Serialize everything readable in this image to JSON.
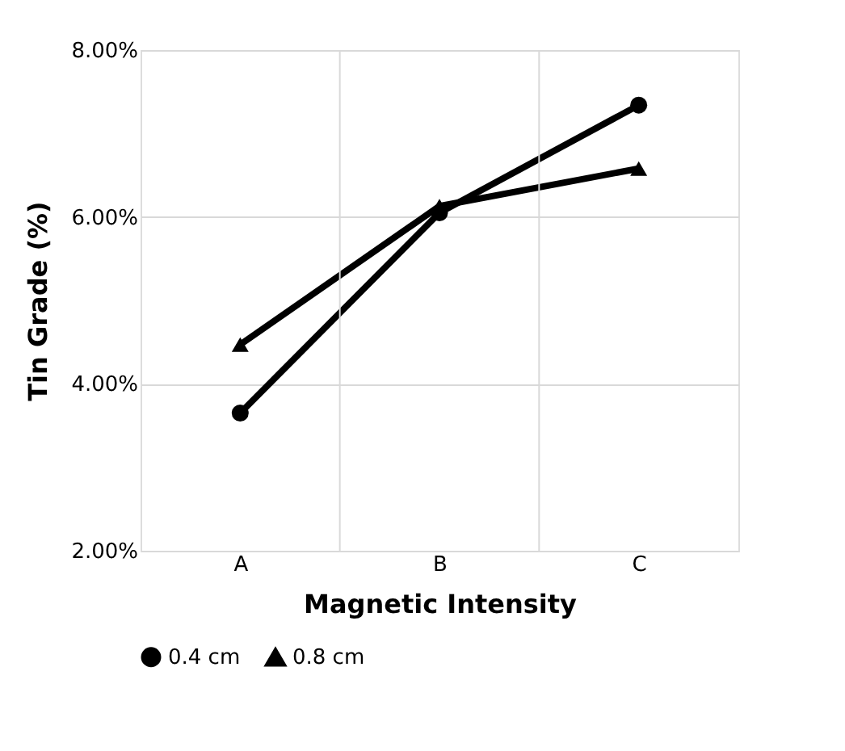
{
  "chart_data": {
    "type": "line",
    "xlabel": "Magnetic Intensity",
    "ylabel": "Tin Grade (%)",
    "categories": [
      "A",
      "B",
      "C"
    ],
    "series": [
      {
        "name": "0.4 cm",
        "color": "#000000",
        "marker": "circle",
        "values": [
          3.65,
          6.05,
          7.34
        ]
      },
      {
        "name": "0.8 cm",
        "color": "#000000",
        "marker": "triangle",
        "values": [
          4.47,
          6.13,
          6.58
        ]
      }
    ],
    "ylim": [
      2,
      8
    ],
    "yticks": [
      {
        "value": 2,
        "label": "2.00%"
      },
      {
        "value": 4,
        "label": "4.00%"
      },
      {
        "value": 6,
        "label": "6.00%"
      },
      {
        "value": 8,
        "label": "8.00%"
      }
    ],
    "grid": true,
    "legend": "bottom",
    "line_style": "solid"
  }
}
